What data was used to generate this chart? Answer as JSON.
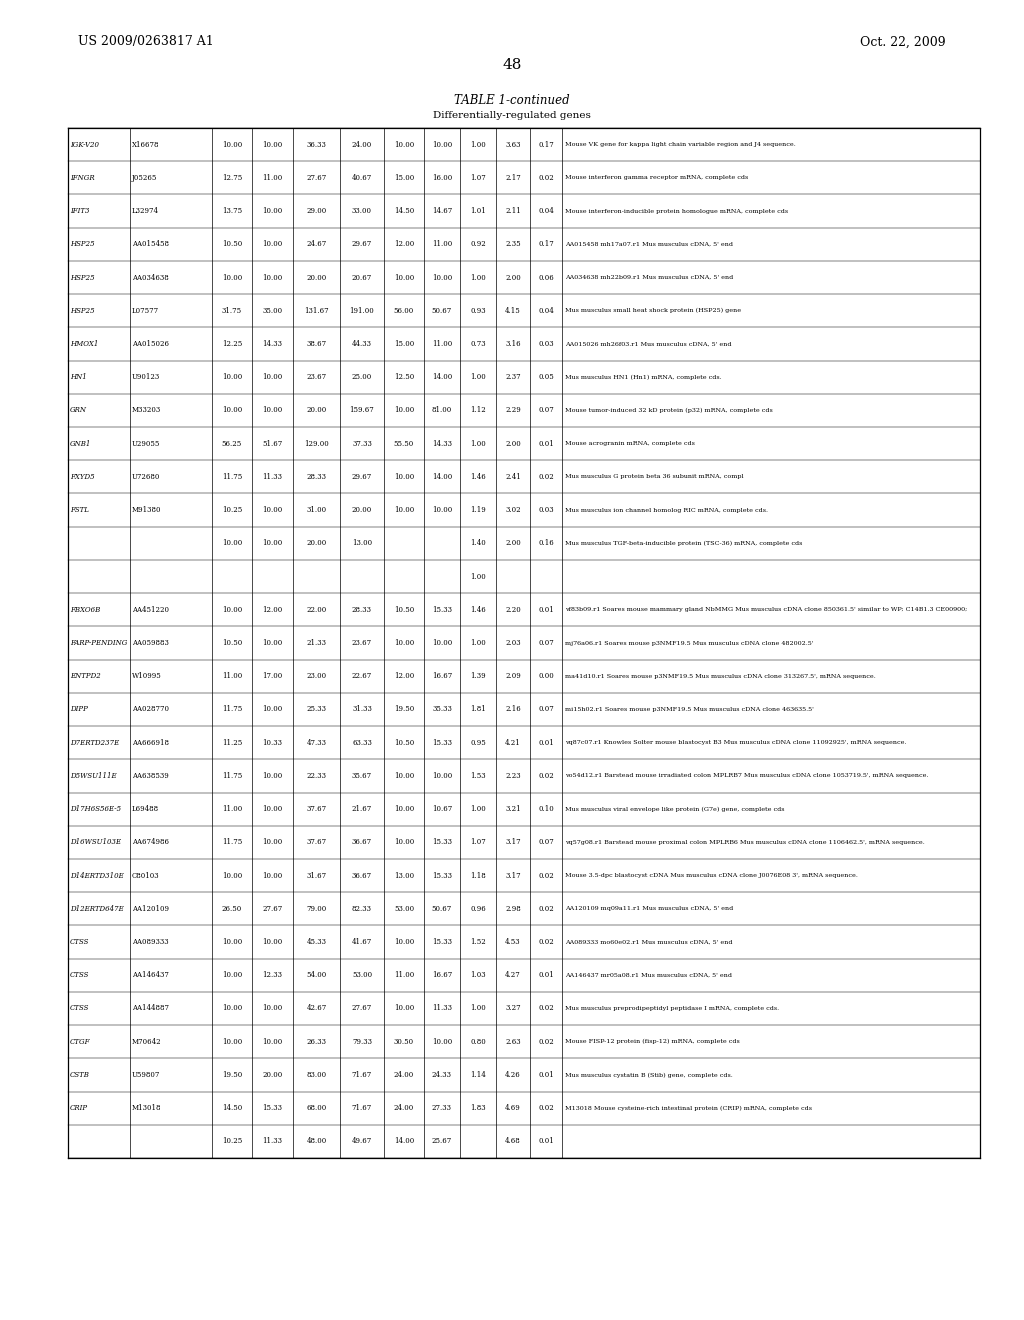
{
  "title_left": "US 2009/0263817 A1",
  "title_right": "Oct. 22, 2009",
  "page_number": "48",
  "table_title": "TABLE 1-continued",
  "table_subtitle": "Differentially-regulated genes",
  "rows": [
    [
      "IGK-V20",
      "X16678",
      "10.00",
      "10.00",
      "36.33",
      "24.00",
      "10.00",
      "10.00",
      "1.00",
      "3.63",
      "0.17",
      "Mouse VK gene for kappa light chain variable region and J4 sequence."
    ],
    [
      "IFNGR",
      "J05265",
      "12.75",
      "11.00",
      "27.67",
      "40.67",
      "15.00",
      "16.00",
      "1.07",
      "2.17",
      "0.02",
      "Mouse interferon gamma receptor mRNA, complete cds"
    ],
    [
      "IFIT3",
      "L32974",
      "13.75",
      "10.00",
      "29.00",
      "33.00",
      "14.50",
      "14.67",
      "1.01",
      "2.11",
      "0.04",
      "Mouse interferon-inducible protein homologue mRNA, complete cds"
    ],
    [
      "HSP25",
      "AA015458",
      "10.50",
      "10.00",
      "24.67",
      "29.67",
      "12.00",
      "11.00",
      "0.92",
      "2.35",
      "0.17",
      "AA015458 mh17a07.r1 Mus musculus cDNA, 5' end"
    ],
    [
      "HSP25",
      "AA034638",
      "10.00",
      "10.00",
      "20.00",
      "20.67",
      "10.00",
      "10.00",
      "1.00",
      "2.00",
      "0.06",
      "AA034638 mh22b09.r1 Mus musculus cDNA, 5' end"
    ],
    [
      "HSP25",
      "L07577",
      "31.75",
      "35.00",
      "131.67",
      "191.00",
      "56.00",
      "50.67",
      "0.93",
      "4.15",
      "0.04",
      "Mus musculus small heat shock protein (HSP25) gene"
    ],
    [
      "HMOX1",
      "AA015026",
      "12.25",
      "14.33",
      "38.67",
      "44.33",
      "15.00",
      "11.00",
      "0.73",
      "3.16",
      "0.03",
      "AA015026 mh26f03.r1 Mus musculus cDNA, 5' end"
    ],
    [
      "HN1",
      "U90123",
      "10.00",
      "10.00",
      "23.67",
      "25.00",
      "12.50",
      "14.00",
      "1.00",
      "2.37",
      "0.05",
      "Mus musculus HN1 (Hn1) mRNA, complete cds."
    ],
    [
      "GRN",
      "M33203",
      "10.00",
      "10.00",
      "20.00",
      "159.67",
      "10.00",
      "81.00",
      "1.12",
      "2.29",
      "0.07",
      "Mouse tumor-induced 32 kD protein (p32) mRNA, complete cds"
    ],
    [
      "GNB1",
      "U29055",
      "56.25",
      "51.67",
      "129.00",
      "37.33",
      "55.50",
      "14.33",
      "1.00",
      "2.00",
      "0.01",
      "Mouse acrogranin mRNA, complete cds"
    ],
    [
      "FXYD5",
      "U72680",
      "11.75",
      "11.33",
      "28.33",
      "29.67",
      "10.00",
      "14.00",
      "1.46",
      "2.41",
      "0.02",
      "Mus musculus G protein beta 36 subunit mRNA, compl"
    ],
    [
      "FSTL",
      "M91380",
      "10.25",
      "10.00",
      "31.00",
      "20.00",
      "10.00",
      "10.00",
      "1.19",
      "3.02",
      "0.03",
      "Mus musculus ion channel homolog RIC mRNA, complete cds."
    ],
    [
      "",
      "",
      "10.00",
      "10.00",
      "20.00",
      "13.00",
      "",
      "",
      "1.40",
      "2.00",
      "0.16",
      "Mus musculus TGF-beta-inducible protein (TSC-36) mRNA, complete cds"
    ],
    [
      "",
      "",
      "",
      "",
      "",
      "",
      "",
      "",
      "1.00",
      "",
      "",
      ""
    ],
    [
      "FBXO6B",
      "AA451220",
      "10.00",
      "12.00",
      "22.00",
      "28.33",
      "10.50",
      "15.33",
      "1.46",
      "2.20",
      "0.01",
      "vf83b09.r1 Soares mouse mammary gland NbMMG Mus musculus cDNA clone 850361.5' similar to WP; C14B1.3 CE00900;"
    ],
    [
      "FARP-PENDING",
      "AA059883",
      "10.50",
      "10.00",
      "21.33",
      "23.67",
      "10.00",
      "10.00",
      "1.00",
      "2.03",
      "0.07",
      "mj76a06.r1 Soares mouse p3NMF19.5 Mus musculus cDNA clone 482002.5'"
    ],
    [
      "ENTPD2",
      "W10995",
      "11.00",
      "17.00",
      "23.00",
      "22.67",
      "12.00",
      "16.67",
      "1.39",
      "2.09",
      "0.00",
      "ma41d10.r1 Soares mouse p3NMF19.5 Mus musculus cDNA clone 313267.5', mRNA sequence."
    ],
    [
      "DIPP",
      "AA028770",
      "11.75",
      "10.00",
      "25.33",
      "31.33",
      "19.50",
      "35.33",
      "1.81",
      "2.16",
      "0.07",
      "mi15h02.r1 Soares mouse p3NMF19.5 Mus musculus cDNA clone 463635.5'"
    ],
    [
      "D7ERTD237E",
      "AA666918",
      "11.25",
      "10.33",
      "47.33",
      "63.33",
      "10.50",
      "15.33",
      "0.95",
      "4.21",
      "0.01",
      "vq87c07.r1 Knowles Solter mouse blastocyst B3 Mus musculus cDNA clone 11092925', mRNA sequence."
    ],
    [
      "D5WSU111E",
      "AA638539",
      "11.75",
      "10.00",
      "22.33",
      "35.67",
      "10.00",
      "10.00",
      "1.53",
      "2.23",
      "0.02",
      "vo54d12.r1 Barstead mouse irradiated colon MPLRB7 Mus musculus cDNA clone 1053719.5', mRNA sequence."
    ],
    [
      "D17H6S56E-5",
      "L69488",
      "11.00",
      "10.00",
      "37.67",
      "21.67",
      "10.00",
      "10.67",
      "1.00",
      "3.21",
      "0.10",
      "Mus musculus viral envelope like protein (G7e) gene, complete cds"
    ],
    [
      "D16WSU103E",
      "AA674986",
      "11.75",
      "10.00",
      "37.67",
      "36.67",
      "10.00",
      "15.33",
      "1.07",
      "3.17",
      "0.07",
      "vq57g08.r1 Barstead mouse proximal colon MPLRB6 Mus musculus cDNA clone 1106462.5', mRNA sequence."
    ],
    [
      "D14ERTD310E",
      "C80103",
      "10.00",
      "10.00",
      "31.67",
      "36.67",
      "13.00",
      "15.33",
      "1.18",
      "3.17",
      "0.02",
      "Mouse 3.5-dpc blastocyst cDNA Mus musculus cDNA clone J0076E08 3', mRNA sequence."
    ],
    [
      "D12ERTD647E",
      "AA120109",
      "26.50",
      "27.67",
      "79.00",
      "82.33",
      "53.00",
      "50.67",
      "0.96",
      "2.98",
      "0.02",
      "AA120109 mq09a11.r1 Mus musculus cDNA, 5' end"
    ],
    [
      "CTSS",
      "AA089333",
      "10.00",
      "10.00",
      "45.33",
      "41.67",
      "10.00",
      "15.33",
      "1.52",
      "4.53",
      "0.02",
      "AA089333 mo60e02.r1 Mus musculus cDNA, 5' end"
    ],
    [
      "CTSS",
      "AA146437",
      "10.00",
      "12.33",
      "54.00",
      "53.00",
      "11.00",
      "16.67",
      "1.03",
      "4.27",
      "0.01",
      "AA146437 mr05a08.r1 Mus musculus cDNA, 5' end"
    ],
    [
      "CTSS",
      "AA144887",
      "10.00",
      "10.00",
      "42.67",
      "27.67",
      "10.00",
      "11.33",
      "1.00",
      "3.27",
      "0.02",
      "Mus musculus preprodipeptidyl peptidase I mRNA, complete cds."
    ],
    [
      "CTGF",
      "M70642",
      "10.00",
      "10.00",
      "26.33",
      "79.33",
      "30.50",
      "10.00",
      "0.80",
      "2.63",
      "0.02",
      "Mouse FISP-12 protein (fisp-12) mRNA, complete cds"
    ],
    [
      "CSTB",
      "U59807",
      "19.50",
      "20.00",
      "83.00",
      "71.67",
      "24.00",
      "24.33",
      "1.14",
      "4.26",
      "0.01",
      "Mus musculus cystatin B (Stib) gene, complete cds."
    ],
    [
      "CRIP",
      "M13018",
      "14.50",
      "15.33",
      "68.00",
      "71.67",
      "24.00",
      "27.33",
      "1.83",
      "4.69",
      "0.02",
      "M13018 Mouse cysteine-rich intestinal protein (CRIP) mRNA, complete cds"
    ],
    [
      "",
      "",
      "10.25",
      "11.33",
      "48.00",
      "49.67",
      "14.00",
      "25.67",
      "",
      "4.68",
      "0.01",
      ""
    ]
  ]
}
